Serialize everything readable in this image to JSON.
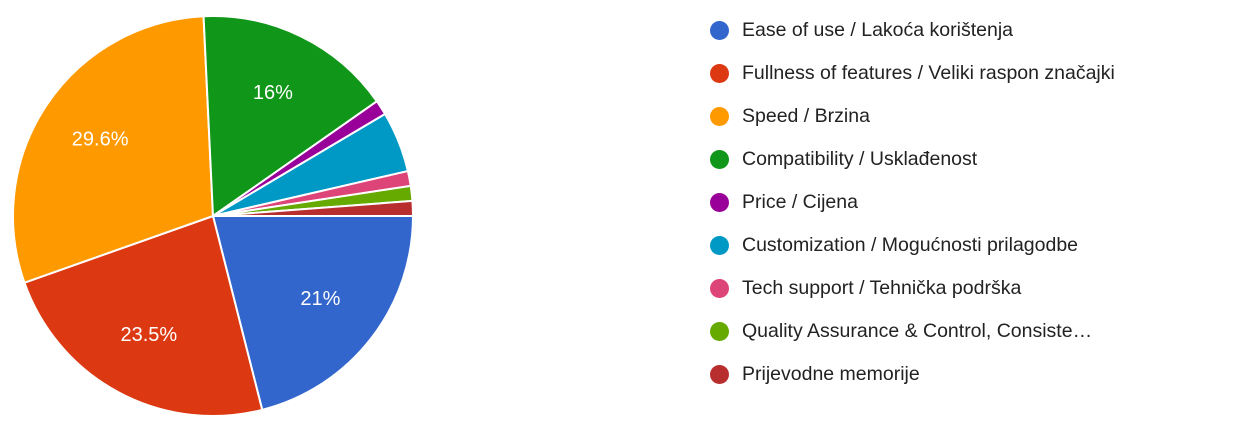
{
  "chart_data": {
    "type": "pie",
    "categories": [
      "Ease of use / Lakoća korištenja",
      "Fullness of features / Veliki raspon značajki",
      "Speed / Brzina",
      "Compatibility / Usklađenost",
      "Price / Cijena",
      "Customization / Mogućnosti prilagodbe",
      "Tech support / Tehnička podrška",
      "Quality Assurance & Control, Consiste…",
      "Prijevodne memorije"
    ],
    "values": [
      21,
      23.5,
      29.6,
      16,
      1.2,
      4.9,
      1.2,
      1.2,
      1.2
    ],
    "value_labels": [
      "21%",
      "23.5%",
      "29.6%",
      "16%",
      null,
      null,
      null,
      null,
      null
    ],
    "colors": [
      "#3366cc",
      "#dc3912",
      "#ff9900",
      "#109618",
      "#990099",
      "#0099c6",
      "#dd4477",
      "#66aa00",
      "#b82e2e"
    ],
    "legend": "right"
  }
}
